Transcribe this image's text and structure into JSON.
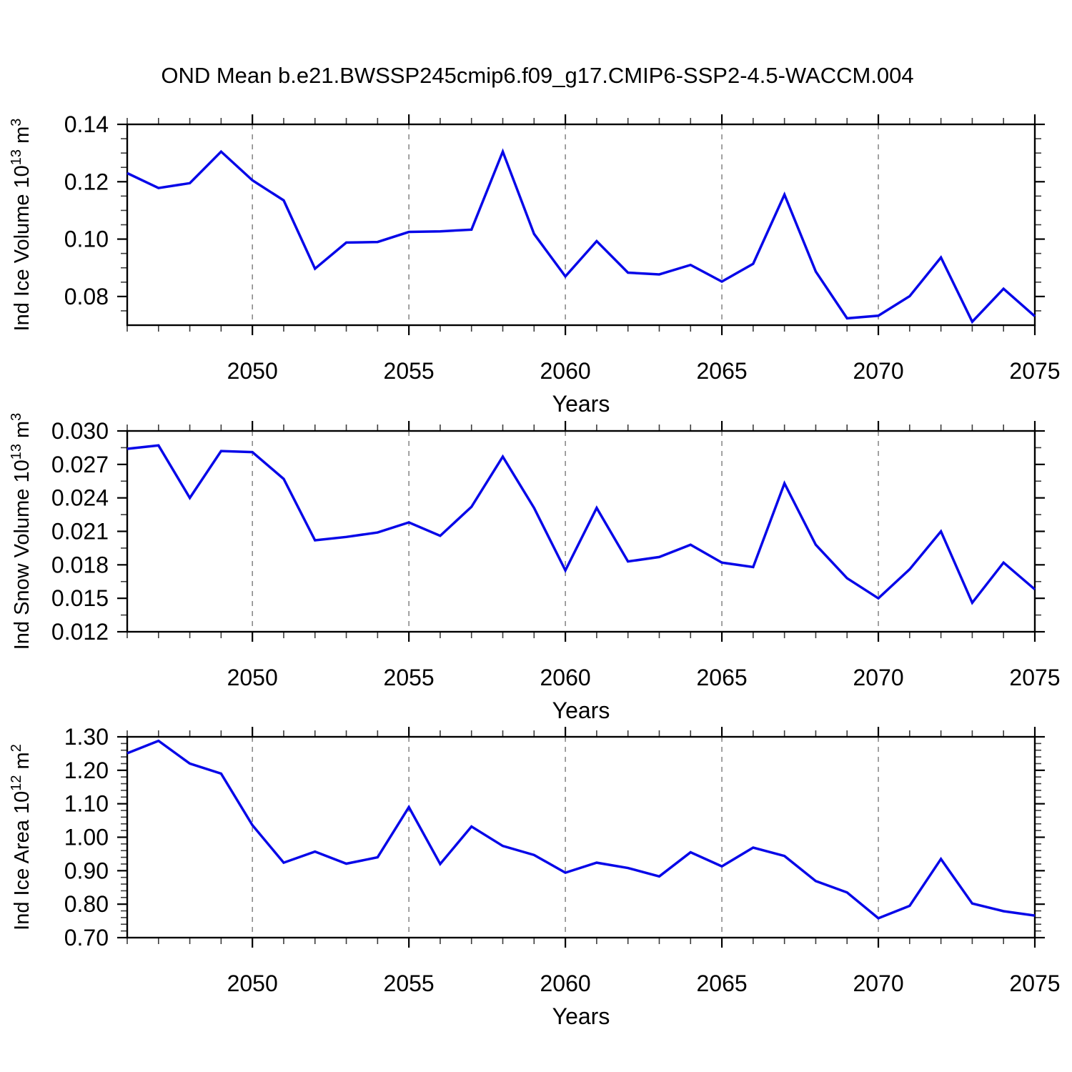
{
  "title": "OND Mean b.e21.BWSSP245cmip6.f09_g17.CMIP6-SSP2-4.5-WACCM.004",
  "line_color": "#0707e8",
  "grid": {
    "style": "dashed",
    "color": "#838383",
    "vertical_gridlines": true
  },
  "x_axis": {
    "label": "Years",
    "start_year": 2046,
    "end_year": 2075,
    "major_ticks": [
      2050,
      2055,
      2060,
      2065,
      2070,
      2075
    ],
    "major_tick_labels": [
      "2050",
      "2055",
      "2060",
      "2065",
      "2070",
      "2075"
    ],
    "gridline_years": [
      2050,
      2055,
      2060,
      2065,
      2070
    ],
    "minor_tick_step": 1
  },
  "chart_data": [
    {
      "type": "line",
      "id": "ice_volume",
      "ylabel": {
        "prefix": "Ind Ice Volume 10",
        "exponent": "13",
        "unit": " m",
        "unit_exponent": "3"
      },
      "ylim": [
        0.07,
        0.14
      ],
      "yticks": [
        0.08,
        0.1,
        0.12,
        0.14
      ],
      "ytick_labels": [
        "0.08",
        "0.10",
        "0.12",
        "0.14"
      ],
      "yminor_step": 0.005,
      "x": [
        2046,
        2047,
        2048,
        2049,
        2050,
        2051,
        2052,
        2053,
        2054,
        2055,
        2056,
        2057,
        2058,
        2059,
        2060,
        2061,
        2062,
        2063,
        2064,
        2065,
        2066,
        2067,
        2068,
        2069,
        2070,
        2071,
        2072,
        2073,
        2074,
        2075
      ],
      "values": [
        0.123,
        0.1178,
        0.1195,
        0.1305,
        0.1205,
        0.1135,
        0.0897,
        0.0988,
        0.099,
        0.1025,
        0.1027,
        0.1033,
        0.1305,
        0.1018,
        0.087,
        0.0993,
        0.0883,
        0.0877,
        0.091,
        0.0852,
        0.0914,
        0.1155,
        0.0887,
        0.0724,
        0.0733,
        0.0801,
        0.0936,
        0.0712,
        0.0827,
        0.0731
      ]
    },
    {
      "type": "line",
      "id": "snow_volume",
      "ylabel": {
        "prefix": "Ind Snow Volume 10",
        "exponent": "13",
        "unit": " m",
        "unit_exponent": "3"
      },
      "ylim": [
        0.012,
        0.03
      ],
      "yticks": [
        0.012,
        0.015,
        0.018,
        0.021,
        0.024,
        0.027,
        0.03
      ],
      "ytick_labels": [
        "0.012",
        "0.015",
        "0.018",
        "0.021",
        "0.024",
        "0.027",
        "0.030"
      ],
      "yminor_step": 0.0015,
      "x": [
        2046,
        2047,
        2048,
        2049,
        2050,
        2051,
        2052,
        2053,
        2054,
        2055,
        2056,
        2057,
        2058,
        2059,
        2060,
        2061,
        2062,
        2063,
        2064,
        2065,
        2066,
        2067,
        2068,
        2069,
        2070,
        2071,
        2072,
        2073,
        2074,
        2075
      ],
      "values": [
        0.0284,
        0.0287,
        0.024,
        0.0282,
        0.0281,
        0.0257,
        0.0202,
        0.0205,
        0.0209,
        0.0218,
        0.0206,
        0.0232,
        0.0277,
        0.0231,
        0.0175,
        0.0231,
        0.0183,
        0.0187,
        0.0198,
        0.0182,
        0.0178,
        0.0253,
        0.0198,
        0.0168,
        0.015,
        0.0176,
        0.021,
        0.0146,
        0.0182,
        0.0158
      ]
    },
    {
      "type": "line",
      "id": "ice_area",
      "ylabel": {
        "prefix": "Ind Ice Area 10",
        "exponent": "12",
        "unit": " m",
        "unit_exponent": "2"
      },
      "ylim": [
        0.7,
        1.3
      ],
      "yticks": [
        0.7,
        0.8,
        0.9,
        1.0,
        1.1,
        1.2,
        1.3
      ],
      "ytick_labels": [
        "0.70",
        "0.80",
        "0.90",
        "1.00",
        "1.10",
        "1.20",
        "1.30"
      ],
      "yminor_step": 0.02,
      "x": [
        2046,
        2047,
        2048,
        2049,
        2050,
        2051,
        2052,
        2053,
        2054,
        2055,
        2056,
        2057,
        2058,
        2059,
        2060,
        2061,
        2062,
        2063,
        2064,
        2065,
        2066,
        2067,
        2068,
        2069,
        2070,
        2071,
        2072,
        2073,
        2074,
        2075
      ],
      "values": [
        1.251,
        1.288,
        1.22,
        1.19,
        1.036,
        0.924,
        0.957,
        0.921,
        0.94,
        1.09,
        0.92,
        1.032,
        0.974,
        0.947,
        0.894,
        0.924,
        0.908,
        0.883,
        0.955,
        0.913,
        0.969,
        0.944,
        0.869,
        0.835,
        0.758,
        0.795,
        0.935,
        0.802,
        0.779,
        0.766
      ]
    }
  ]
}
